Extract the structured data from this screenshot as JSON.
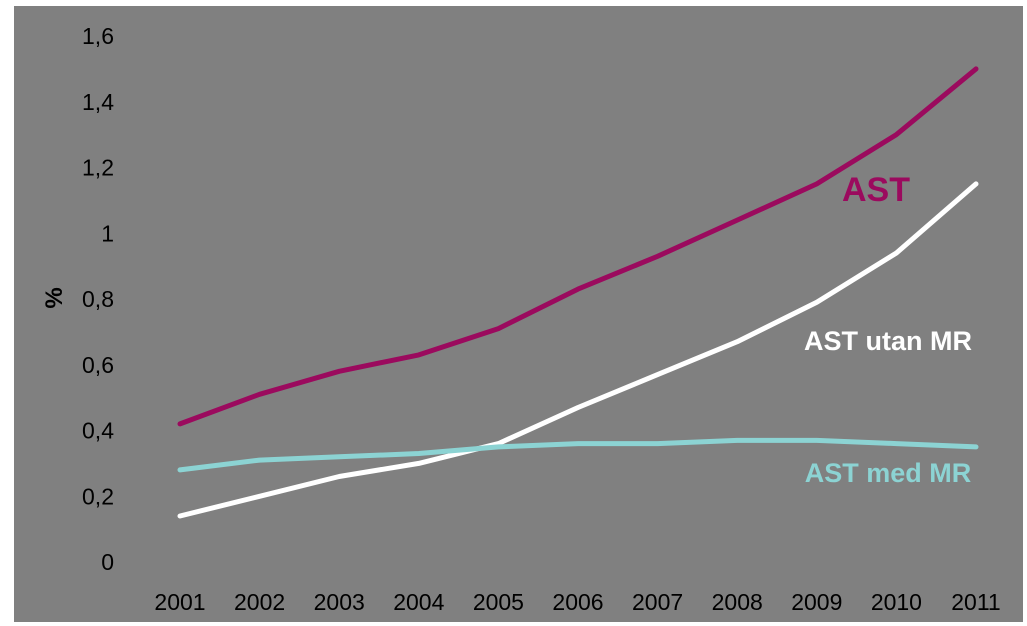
{
  "chart_data": {
    "type": "line",
    "x": [
      "2001",
      "2002",
      "2003",
      "2004",
      "2005",
      "2006",
      "2007",
      "2008",
      "2009",
      "2010",
      "2011"
    ],
    "ylabel": "%",
    "ylim": [
      0,
      1.6
    ],
    "yticks": [
      "0",
      "0,2",
      "0,4",
      "0,6",
      "0,8",
      "1",
      "1,2",
      "1,4",
      "1,6"
    ],
    "grid": false,
    "background": "#808080",
    "series": [
      {
        "name": "AST",
        "color": "#9b0a5e",
        "values": [
          0.42,
          0.51,
          0.58,
          0.63,
          0.71,
          0.83,
          0.93,
          1.04,
          1.15,
          1.3,
          1.5
        ]
      },
      {
        "name": "AST utan MR",
        "color": "#ffffff",
        "values": [
          0.14,
          0.2,
          0.26,
          0.3,
          0.36,
          0.47,
          0.57,
          0.67,
          0.79,
          0.94,
          1.15
        ]
      },
      {
        "name": "AST med MR",
        "color": "#8cd3d3",
        "values": [
          0.28,
          0.31,
          0.32,
          0.33,
          0.35,
          0.36,
          0.36,
          0.37,
          0.37,
          0.36,
          0.35
        ]
      }
    ]
  }
}
